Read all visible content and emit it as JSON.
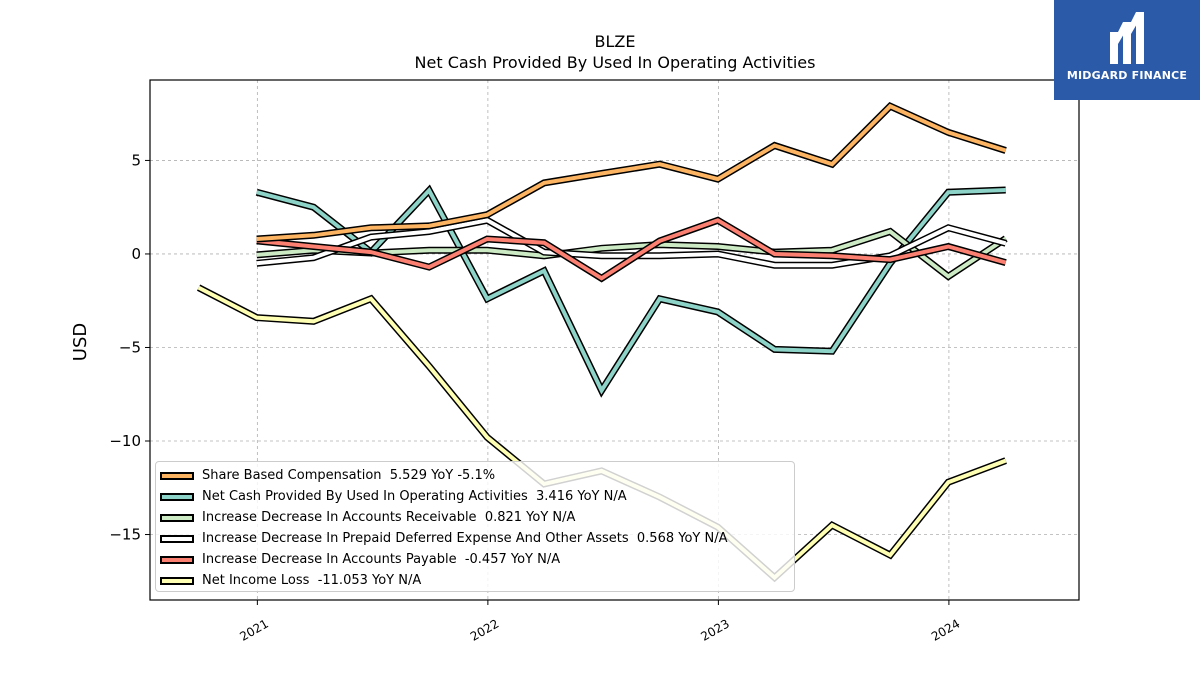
{
  "chart_data": {
    "type": "line",
    "title": "BLZE",
    "subtitle": "Net Cash Provided By Used In Operating Activities",
    "ylabel": "USD",
    "xlabel": "",
    "ylim": [
      -18.5,
      9.3
    ],
    "xlim": [
      "2020-07-15",
      "2024-07-25"
    ],
    "yticks": [
      5,
      0,
      -5,
      -10,
      -15
    ],
    "ytick_labels": [
      "5",
      "0",
      "−5",
      "−10",
      "−15"
    ],
    "xticks": [
      "2021-01-01",
      "2022-01-01",
      "2023-01-01",
      "2024-01-01"
    ],
    "xtick_labels": [
      "2021",
      "2022",
      "2023",
      "2024"
    ],
    "grid": true,
    "legend_position": "lower-left",
    "x": [
      "2020-09-30",
      "2020-12-31",
      "2021-03-31",
      "2021-06-30",
      "2021-09-30",
      "2021-12-31",
      "2022-03-31",
      "2022-06-30",
      "2022-09-30",
      "2022-12-31",
      "2023-03-31",
      "2023-06-30",
      "2023-09-30",
      "2023-12-31",
      "2024-03-31"
    ],
    "series": [
      {
        "name": "Net Income Loss",
        "legend": "Net Income Loss  -11.053 YoY N/A",
        "color": "#ffffb3",
        "values": [
          -1.8,
          -3.4,
          -3.6,
          -2.4,
          -6.0,
          -9.8,
          -12.3,
          -11.6,
          -13.0,
          -14.6,
          -17.3,
          -14.5,
          -16.1,
          -12.2,
          -11.05
        ]
      },
      {
        "name": "Net Cash Provided By Used In Operating Activities",
        "legend": "Net Cash Provided By Used In Operating Activities  3.416 YoY N/A",
        "color": "#8dd3c7",
        "values": [
          null,
          3.3,
          2.5,
          0.1,
          3.4,
          -2.4,
          -0.9,
          -7.3,
          -2.4,
          -3.1,
          -5.1,
          -5.2,
          -0.5,
          3.3,
          3.42
        ]
      },
      {
        "name": "Increase Decrease In Accounts Receivable",
        "legend": "Increase Decrease In Accounts Receivable  0.821 YoY N/A",
        "color": "#ccebc5",
        "values": [
          null,
          -0.05,
          0.2,
          0.05,
          0.2,
          0.2,
          -0.1,
          0.3,
          0.5,
          0.4,
          0.1,
          0.2,
          1.2,
          -1.2,
          0.82
        ]
      },
      {
        "name": "Increase Decrease In Prepaid Deferred Expense And Other Assets",
        "legend": "Increase Decrease In Prepaid Deferred Expense And Other Assets  0.568 YoY N/A",
        "color": "#ffffff",
        "values": [
          null,
          -0.5,
          -0.2,
          0.9,
          1.2,
          1.8,
          0.1,
          -0.1,
          -0.1,
          0.0,
          -0.6,
          -0.6,
          -0.1,
          1.4,
          0.57
        ]
      },
      {
        "name": "Increase Decrease In Accounts Payable",
        "legend": "Increase Decrease In Accounts Payable  -0.457 YoY N/A",
        "color": "#fb8072",
        "values": [
          null,
          0.7,
          0.4,
          0.1,
          -0.7,
          0.8,
          0.6,
          -1.3,
          0.7,
          1.8,
          0.0,
          -0.1,
          -0.3,
          0.4,
          -0.46
        ]
      },
      {
        "name": "Share Based Compensation",
        "legend": "Share Based Compensation  5.529 YoY -5.1%",
        "color": "#fdb462",
        "values": [
          null,
          0.8,
          1.0,
          1.4,
          1.5,
          2.1,
          3.8,
          4.3,
          4.8,
          4.0,
          5.8,
          4.8,
          7.9,
          6.5,
          5.53
        ]
      }
    ],
    "legend_order": [
      5,
      1,
      2,
      3,
      4,
      0
    ]
  },
  "logo": {
    "text": "MIDGARD FINANCE",
    "background": "#2a5aa8"
  }
}
